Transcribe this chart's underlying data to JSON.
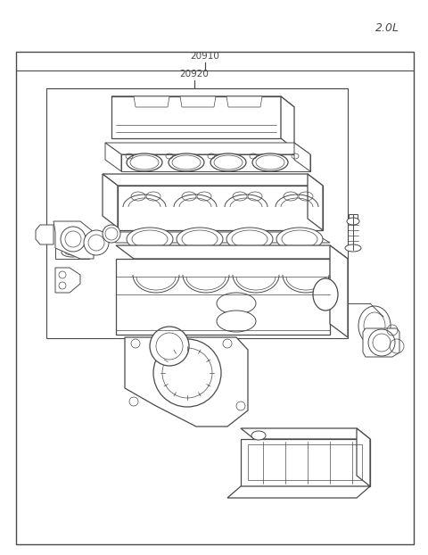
{
  "title": "2.0L",
  "label_20910": "20910",
  "label_20920": "20920",
  "bg_color": "#ffffff",
  "line_color": "#4a4a4a",
  "text_color": "#4a4a4a",
  "fig_width": 4.8,
  "fig_height": 6.22,
  "dpi": 100,
  "lw_main": 0.9,
  "lw_thin": 0.5,
  "lw_med": 0.7
}
